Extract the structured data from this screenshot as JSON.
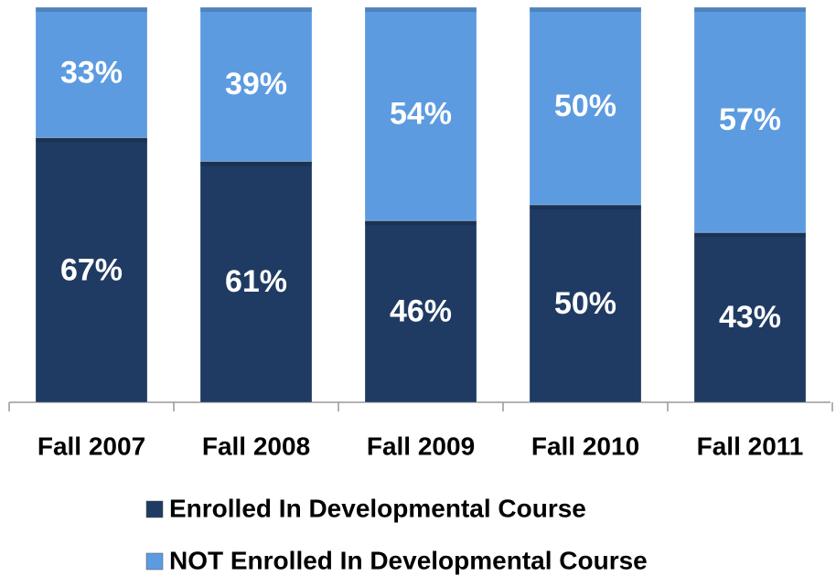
{
  "chart_data": {
    "type": "stacked_bar",
    "categories": [
      "Fall 2007",
      "Fall 2008",
      "Fall 2009",
      "Fall 2010",
      "Fall 2011"
    ],
    "series": [
      {
        "name": "Enrolled In Developmental Course",
        "color": "#1f3b63",
        "values": [
          67,
          61,
          46,
          50,
          43
        ],
        "value_labels": [
          "67%",
          "61%",
          "46%",
          "50%",
          "43%"
        ]
      },
      {
        "name": "NOT Enrolled In Developmental Course",
        "color": "#5c9be0",
        "values": [
          33,
          39,
          54,
          50,
          57
        ],
        "value_labels": [
          "33%",
          "39%",
          "54%",
          "50%",
          "57%"
        ]
      }
    ],
    "ylim": [
      0,
      100
    ],
    "legend": "bottom"
  }
}
